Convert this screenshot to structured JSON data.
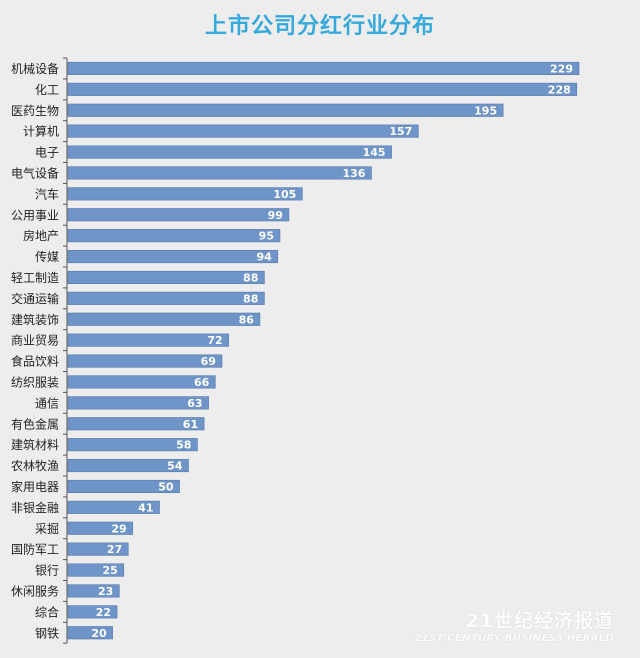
{
  "chart_data": {
    "type": "bar",
    "orientation": "horizontal",
    "title": "上市公司分红行业分布",
    "categories": [
      "机械设备",
      "化工",
      "医药生物",
      "计算机",
      "电子",
      "电气设备",
      "汽车",
      "公用事业",
      "房地产",
      "传媒",
      "轻工制造",
      "交通运输",
      "建筑装饰",
      "商业贸易",
      "食品饮料",
      "纺织服装",
      "通信",
      "有色金属",
      "建筑材料",
      "农林牧渔",
      "家用电器",
      "非银金融",
      "采掘",
      "国防军工",
      "银行",
      "休闲服务",
      "综合",
      "钢铁"
    ],
    "values": [
      229,
      228,
      195,
      157,
      145,
      136,
      105,
      99,
      95,
      94,
      88,
      88,
      86,
      72,
      69,
      66,
      63,
      61,
      58,
      54,
      50,
      41,
      29,
      27,
      25,
      23,
      22,
      20
    ],
    "xlim": [
      0,
      229
    ],
    "grid": false,
    "legend": "none",
    "data_labels": true
  },
  "colors": {
    "title": "#35a9dc",
    "bar": "#6f95c8",
    "bar_edge": "#5679ad",
    "label_text": "#ffffff",
    "background": "#ededed"
  },
  "watermark": {
    "main": "21世纪经济报道",
    "sub": "21ST CENTURY BUSINESS HERALD"
  }
}
